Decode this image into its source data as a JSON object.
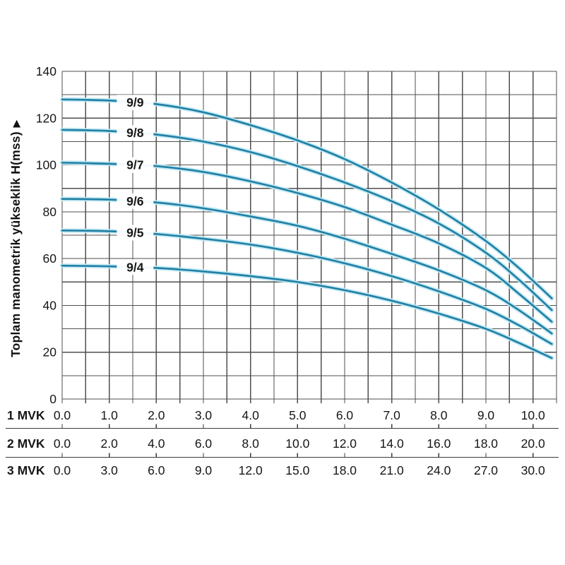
{
  "y_axis": {
    "title": "Toplam manometrik yükseklik H(mss)",
    "arrow": "▶",
    "tick_labels": [
      "0",
      "20",
      "40",
      "60",
      "80",
      "100",
      "120",
      "140"
    ],
    "tick_values": [
      0,
      20,
      40,
      60,
      80,
      100,
      120,
      140
    ]
  },
  "x_rows": [
    {
      "label": "1 MVK",
      "ticks": [
        "0.0",
        "1.0",
        "2.0",
        "3.0",
        "4.0",
        "5.0",
        "6.0",
        "7.0",
        "8.0",
        "9.0",
        "10.0"
      ]
    },
    {
      "label": "2 MVK",
      "ticks": [
        "0.0",
        "2.0",
        "4.0",
        "6.0",
        "8.0",
        "10.0",
        "12.0",
        "14.0",
        "16.0",
        "18.0",
        "20.0"
      ]
    },
    {
      "label": "3 MVK",
      "ticks": [
        "0.0",
        "3.0",
        "6.0",
        "9.0",
        "12.0",
        "15.0",
        "18.0",
        "21.0",
        "24.0",
        "27.0",
        "30.0"
      ]
    }
  ],
  "chart_data": {
    "type": "line",
    "title": "",
    "ylabel": "Toplam manometrik yükseklik H(mss)",
    "xlabel_rows": [
      "1 MVK",
      "2 MVK",
      "3 MVK"
    ],
    "ylim": [
      0,
      140
    ],
    "y_major_step": 20,
    "y_grid_step": 10,
    "xlim": [
      0,
      10.5
    ],
    "x_grid_step": 0.5,
    "grid": true,
    "legend_position": "on-curve",
    "series_label_q": 1.55,
    "series": [
      {
        "name": "9/9",
        "points": [
          [
            0,
            128
          ],
          [
            1,
            127.5
          ],
          [
            2,
            126
          ],
          [
            3,
            122.5
          ],
          [
            4,
            117
          ],
          [
            5,
            110.5
          ],
          [
            6,
            102.5
          ],
          [
            7,
            92.5
          ],
          [
            8,
            81
          ],
          [
            9,
            67.5
          ],
          [
            9.7,
            56
          ],
          [
            10.4,
            43
          ]
        ]
      },
      {
        "name": "9/8",
        "points": [
          [
            0,
            115
          ],
          [
            1,
            114.5
          ],
          [
            2,
            113
          ],
          [
            3,
            110
          ],
          [
            4,
            105.5
          ],
          [
            5,
            99.5
          ],
          [
            6,
            92.5
          ],
          [
            7,
            84.5
          ],
          [
            8,
            75
          ],
          [
            9,
            62.5
          ],
          [
            9.7,
            51
          ],
          [
            10.4,
            38
          ]
        ]
      },
      {
        "name": "9/7",
        "points": [
          [
            0,
            101
          ],
          [
            1,
            100.5
          ],
          [
            2,
            99.5
          ],
          [
            3,
            97
          ],
          [
            4,
            93
          ],
          [
            5,
            88
          ],
          [
            6,
            82
          ],
          [
            7,
            74.5
          ],
          [
            8,
            66.5
          ],
          [
            9,
            56
          ],
          [
            9.7,
            45
          ],
          [
            10.4,
            33
          ]
        ]
      },
      {
        "name": "9/6",
        "points": [
          [
            0,
            85.5
          ],
          [
            1,
            85.2
          ],
          [
            2,
            84
          ],
          [
            3,
            81.5
          ],
          [
            4,
            78
          ],
          [
            5,
            74
          ],
          [
            6,
            68.5
          ],
          [
            7,
            62
          ],
          [
            8,
            55
          ],
          [
            9,
            46.5
          ],
          [
            9.7,
            38
          ],
          [
            10.4,
            28
          ]
        ]
      },
      {
        "name": "9/5",
        "points": [
          [
            0,
            72
          ],
          [
            1,
            71.7
          ],
          [
            2,
            70.5
          ],
          [
            3,
            68.5
          ],
          [
            4,
            66
          ],
          [
            5,
            62.5
          ],
          [
            6,
            58
          ],
          [
            7,
            52.5
          ],
          [
            8,
            46
          ],
          [
            9,
            38.5
          ],
          [
            9.7,
            31.5
          ],
          [
            10.4,
            23.5
          ]
        ]
      },
      {
        "name": "9/4",
        "points": [
          [
            0,
            57
          ],
          [
            1,
            56.7
          ],
          [
            2,
            56
          ],
          [
            3,
            54.5
          ],
          [
            4,
            52.5
          ],
          [
            5,
            50
          ],
          [
            6,
            46.5
          ],
          [
            7,
            42
          ],
          [
            8,
            36.5
          ],
          [
            9,
            30
          ],
          [
            9.7,
            24
          ],
          [
            10.4,
            17.5
          ]
        ]
      }
    ],
    "colors": {
      "curve": "#2181a6",
      "curve_halo": "#c2e9f4",
      "grid": "#4f4f4f",
      "separator": "#3a3a3a",
      "text": "#161616",
      "background": "#ffffff"
    }
  }
}
